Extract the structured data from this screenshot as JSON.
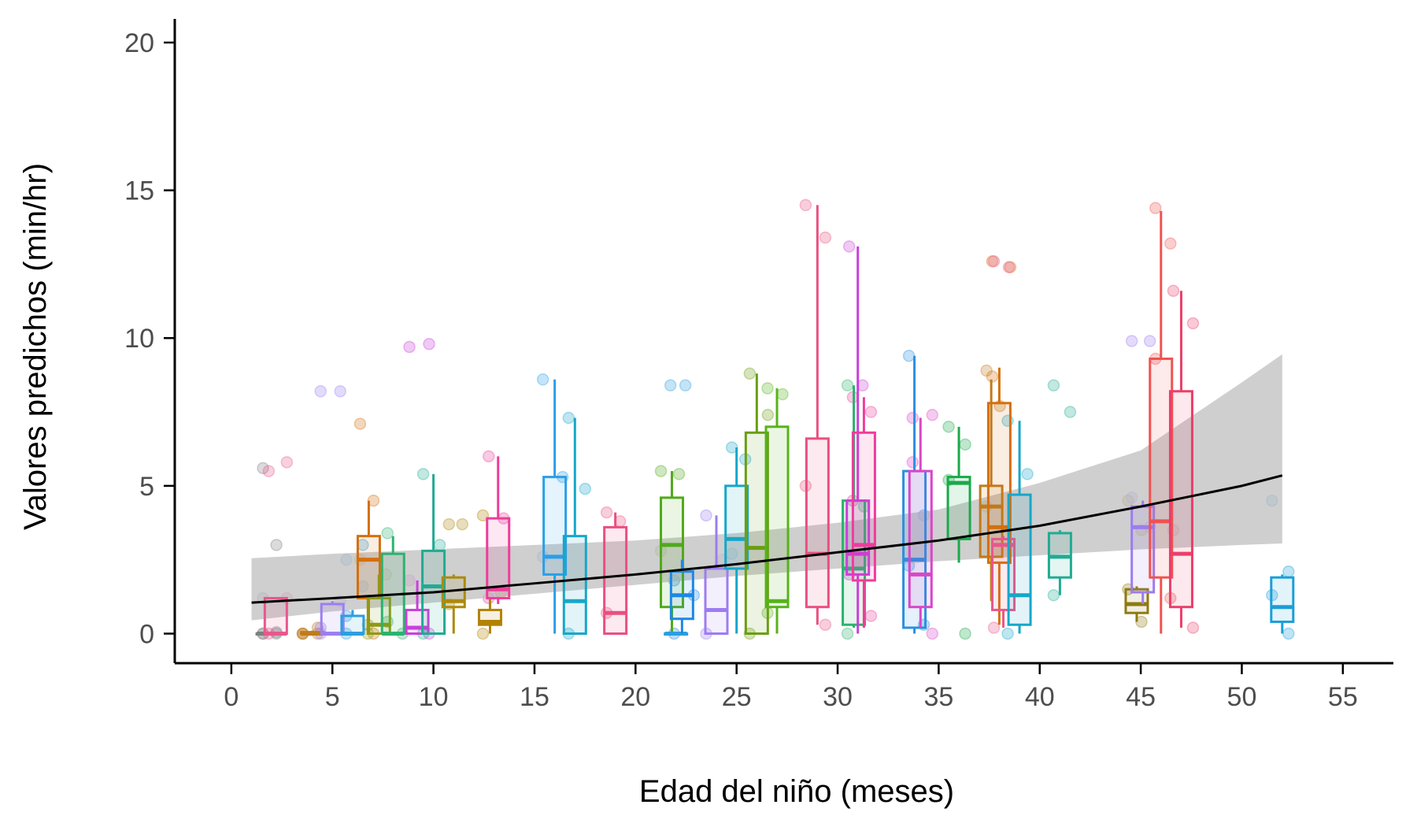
{
  "chart_data": {
    "type": "boxplot",
    "title": "",
    "xlabel": "Edad del niño (meses)",
    "ylabel": "Valores predichos (min/hr)",
    "xlim": [
      -2.8,
      57.5
    ],
    "ylim": [
      -1.0,
      20.8
    ],
    "xticks": [
      0,
      5,
      10,
      15,
      20,
      25,
      30,
      35,
      40,
      45,
      50,
      55
    ],
    "yticks": [
      0,
      5,
      10,
      15,
      20
    ],
    "grid": false,
    "legend": "none",
    "trend": {
      "label": "fitted curve with confidence band",
      "color": "#000000",
      "band_color": "#bfbfbf",
      "x": [
        1,
        5,
        10,
        15,
        20,
        25,
        30,
        35,
        40,
        45,
        50,
        52
      ],
      "y": [
        1.05,
        1.2,
        1.4,
        1.7,
        2.0,
        2.35,
        2.75,
        3.15,
        3.65,
        4.3,
        5.0,
        5.35
      ],
      "lower": [
        0.45,
        0.75,
        1.05,
        1.35,
        1.65,
        1.95,
        2.2,
        2.45,
        2.65,
        2.85,
        3.0,
        3.05
      ],
      "upper": [
        2.55,
        2.7,
        2.85,
        3.0,
        3.15,
        3.4,
        3.75,
        4.2,
        5.1,
        6.2,
        8.5,
        9.45
      ]
    },
    "groups": [
      {
        "x": 1.8,
        "color": "#7f7f7f",
        "min": 0.0,
        "q1": 0.0,
        "median": 0.0,
        "q3": 0.0,
        "max": 0.0,
        "points": [
          0,
          0,
          0,
          0.05,
          5.6,
          3.0,
          1.2
        ]
      },
      {
        "x": 2.2,
        "color": "#e8578d",
        "min": 0.0,
        "q1": 0.0,
        "median": 0.0,
        "q3": 1.2,
        "max": 1.2,
        "points": [
          0,
          5.8,
          5.5,
          1.2
        ]
      },
      {
        "x": 4.0,
        "color": "#c07b1c",
        "min": 0.0,
        "q1": 0.0,
        "median": 0.0,
        "q3": 0.05,
        "max": 0.1,
        "points": [
          0,
          0.2,
          0,
          0,
          0
        ]
      },
      {
        "x": 5.0,
        "color": "#9b7ff2",
        "min": 0.0,
        "q1": 0.0,
        "median": 0.0,
        "q3": 1.0,
        "max": 1.1,
        "points": [
          0,
          8.2,
          8.2,
          1.1,
          0.2
        ]
      },
      {
        "x": 6.0,
        "color": "#2b9fe0",
        "min": 0.0,
        "q1": 0.0,
        "median": 0.0,
        "q3": 0.6,
        "max": 0.8,
        "points": [
          0,
          3.0,
          2.5,
          1.6,
          0.6
        ]
      },
      {
        "x": 6.8,
        "color": "#d46f0d",
        "min": 0.0,
        "q1": 1.2,
        "median": 2.5,
        "q3": 3.3,
        "max": 4.5,
        "points": [
          7.1,
          4.5,
          2.5,
          0
        ]
      },
      {
        "x": 7.3,
        "color": "#8f9a12",
        "min": 0.0,
        "q1": 0.0,
        "median": 0.3,
        "q3": 1.2,
        "max": 2.0,
        "points": [
          0,
          2.0,
          0.3
        ]
      },
      {
        "x": 8.0,
        "color": "#2bb36e",
        "min": 0.0,
        "q1": 0.0,
        "median": 0.0,
        "q3": 2.7,
        "max": 3.3,
        "points": [
          3.4,
          0,
          0.4
        ]
      },
      {
        "x": 9.2,
        "color": "#c940d9",
        "min": 0.0,
        "q1": 0.0,
        "median": 0.2,
        "q3": 0.8,
        "max": 1.8,
        "points": [
          9.7,
          9.8,
          1.8,
          0
        ]
      },
      {
        "x": 10.0,
        "color": "#21ab93",
        "min": 0.0,
        "q1": 0.0,
        "median": 1.6,
        "q3": 2.8,
        "max": 5.4,
        "points": [
          5.4,
          3.0,
          0
        ]
      },
      {
        "x": 11.0,
        "color": "#ac8a0e",
        "min": 0.0,
        "q1": 0.9,
        "median": 1.1,
        "q3": 1.9,
        "max": 2.0,
        "points": [
          3.7,
          3.7,
          1.0
        ]
      },
      {
        "x": 12.8,
        "color": "#b28300",
        "min": 0.0,
        "q1": 0.3,
        "median": 0.4,
        "q3": 0.8,
        "max": 1.2,
        "points": [
          4.0,
          1.4,
          0
        ]
      },
      {
        "x": 13.2,
        "color": "#ee3d9b",
        "min": 1.0,
        "q1": 1.2,
        "median": 1.5,
        "q3": 3.9,
        "max": 6.0,
        "points": [
          6.0,
          3.9,
          1.2
        ]
      },
      {
        "x": 16.0,
        "color": "#2a9fe8",
        "min": 0.0,
        "q1": 2.0,
        "median": 2.6,
        "q3": 5.3,
        "max": 8.6,
        "points": [
          8.6,
          5.3,
          2.6
        ]
      },
      {
        "x": 17.0,
        "color": "#16a7c8",
        "min": 0.0,
        "q1": 0.0,
        "median": 1.1,
        "q3": 3.3,
        "max": 7.3,
        "points": [
          7.3,
          4.9,
          0
        ]
      },
      {
        "x": 19.0,
        "color": "#ea4f80",
        "min": 0.0,
        "q1": 0.0,
        "median": 0.7,
        "q3": 3.6,
        "max": 4.1,
        "points": [
          4.1,
          3.8,
          0.7
        ]
      },
      {
        "x": 21.8,
        "color": "#4faa1a",
        "min": 0.0,
        "q1": 0.9,
        "median": 3.0,
        "q3": 4.6,
        "max": 5.5,
        "points": [
          5.5,
          5.4,
          2.8
        ]
      },
      {
        "x": 22.0,
        "color": "#2b9fe0",
        "min": 0.0,
        "q1": 0.0,
        "median": 0.0,
        "q3": 0.0,
        "max": 0.0,
        "points": [
          8.4,
          8.4
        ]
      },
      {
        "x": 22.3,
        "color": "#1e88e5",
        "min": 0.0,
        "q1": 0.5,
        "median": 1.3,
        "q3": 2.1,
        "max": 2.5,
        "points": [
          1.8,
          1.3,
          0
        ]
      },
      {
        "x": 24.0,
        "color": "#9d7cf0",
        "min": 0.0,
        "q1": 0.0,
        "median": 0.8,
        "q3": 2.2,
        "max": 4.0,
        "points": [
          4.0,
          2.5,
          0
        ]
      },
      {
        "x": 25.0,
        "color": "#16a7c8",
        "min": 0.0,
        "q1": 2.2,
        "median": 3.2,
        "q3": 5.0,
        "max": 6.3,
        "points": [
          6.3,
          5.9,
          2.7
        ]
      },
      {
        "x": 26.0,
        "color": "#6a9e12",
        "min": 0.0,
        "q1": 0.0,
        "median": 2.9,
        "q3": 6.8,
        "max": 8.8,
        "points": [
          8.8,
          7.4,
          0
        ]
      },
      {
        "x": 27.0,
        "color": "#56b319",
        "min": 0.0,
        "q1": 0.9,
        "median": 1.1,
        "q3": 7.0,
        "max": 8.3,
        "points": [
          8.3,
          8.1,
          0.7
        ]
      },
      {
        "x": 29.0,
        "color": "#ea4f80",
        "min": 0.3,
        "q1": 0.9,
        "median": 2.7,
        "q3": 6.6,
        "max": 14.5,
        "points": [
          14.5,
          13.4,
          5.0,
          0.3
        ]
      },
      {
        "x": 30.8,
        "color": "#2bb36e",
        "min": 0.2,
        "q1": 0.3,
        "median": 2.2,
        "q3": 4.5,
        "max": 8.4,
        "points": [
          8.4,
          4.3,
          0
        ]
      },
      {
        "x": 31.0,
        "color": "#c940d9",
        "min": 0.0,
        "q1": 2.0,
        "median": 2.7,
        "q3": 4.5,
        "max": 13.1,
        "points": [
          13.1,
          8.4,
          2.0
        ]
      },
      {
        "x": 31.3,
        "color": "#ee3d9b",
        "min": 0.2,
        "q1": 1.8,
        "median": 3.0,
        "q3": 6.8,
        "max": 8.0,
        "points": [
          8.0,
          7.5,
          4.5,
          0.6
        ]
      },
      {
        "x": 33.8,
        "color": "#2c8fe0",
        "min": 0.0,
        "q1": 0.2,
        "median": 2.5,
        "q3": 5.5,
        "max": 9.4,
        "points": [
          9.4,
          4.0,
          2.3,
          0.3
        ]
      },
      {
        "x": 34.1,
        "color": "#d946c8",
        "min": 0.2,
        "q1": 0.9,
        "median": 2.0,
        "q3": 5.5,
        "max": 7.3,
        "points": [
          7.3,
          7.4,
          5.8,
          0
        ]
      },
      {
        "x": 36.0,
        "color": "#1aaa4a",
        "min": 2.4,
        "q1": 3.2,
        "median": 5.1,
        "q3": 5.3,
        "max": 7.0,
        "points": [
          7.0,
          6.4,
          5.2,
          0
        ]
      },
      {
        "x": 37.6,
        "color": "#c07b1c",
        "min": 1.1,
        "q1": 2.6,
        "median": 4.3,
        "q3": 5.0,
        "max": 8.6,
        "points": [
          8.9,
          7.7,
          4.3
        ]
      },
      {
        "x": 38.0,
        "color": "#d46f0d",
        "min": 0.3,
        "q1": 2.4,
        "median": 3.6,
        "q3": 7.8,
        "max": 9.0,
        "points": [
          12.6,
          12.4,
          8.7
        ]
      },
      {
        "x": 38.2,
        "color": "#e8578d",
        "min": 0.2,
        "q1": 0.8,
        "median": 3.0,
        "q3": 3.2,
        "max": 3.3,
        "points": [
          12.6,
          12.4,
          0.2
        ]
      },
      {
        "x": 39.0,
        "color": "#16a7c8",
        "min": 0.0,
        "q1": 0.3,
        "median": 1.3,
        "q3": 4.7,
        "max": 7.2,
        "points": [
          7.2,
          5.4,
          0
        ]
      },
      {
        "x": 41.0,
        "color": "#21ab93",
        "min": 1.3,
        "q1": 1.9,
        "median": 2.6,
        "q3": 3.4,
        "max": 3.5,
        "points": [
          8.4,
          7.5,
          1.3
        ]
      },
      {
        "x": 44.8,
        "color": "#8f7a10",
        "min": 0.4,
        "q1": 0.7,
        "median": 1.0,
        "q3": 1.5,
        "max": 1.6,
        "points": [
          4.5,
          3.5,
          1.5,
          0.4
        ]
      },
      {
        "x": 45.1,
        "color": "#9d7cf0",
        "min": 1.0,
        "q1": 1.4,
        "median": 3.6,
        "q3": 4.3,
        "max": 4.5,
        "points": [
          9.9,
          9.9,
          4.6,
          3.6
        ]
      },
      {
        "x": 46.0,
        "color": "#ef5350",
        "min": 0.0,
        "q1": 1.9,
        "median": 3.8,
        "q3": 9.3,
        "max": 14.3,
        "points": [
          14.4,
          13.2,
          9.3,
          1.2
        ]
      },
      {
        "x": 47.0,
        "color": "#ea3f6a",
        "min": 0.2,
        "q1": 0.9,
        "median": 2.7,
        "q3": 8.2,
        "max": 11.6,
        "points": [
          11.6,
          10.5,
          3.5,
          0.2
        ]
      },
      {
        "x": 52.0,
        "color": "#1a9fd8",
        "min": 0.0,
        "q1": 0.4,
        "median": 0.9,
        "q3": 1.9,
        "max": 2.0,
        "points": [
          4.5,
          2.1,
          1.3,
          0
        ]
      }
    ]
  }
}
